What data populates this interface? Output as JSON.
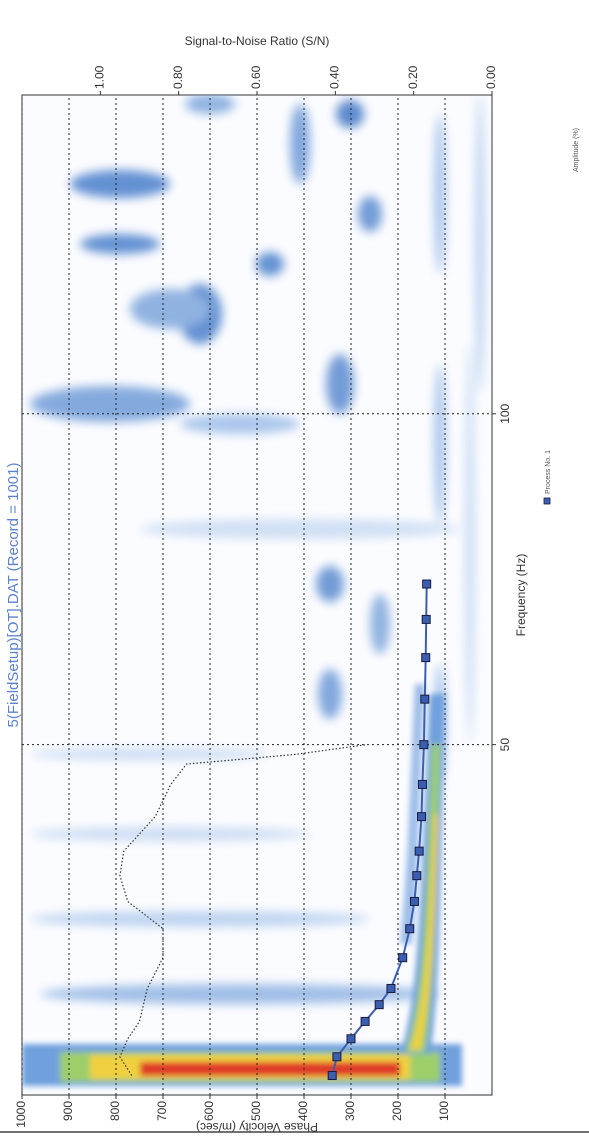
{
  "chart_data": {
    "type": "line",
    "title": "5(FieldSetup)[OT].DAT (Record = 1001)",
    "x_label": "Frequency (Hz)",
    "y_label": "Phase Velocity (m/sec)",
    "y2_label": "Signal-to-Noise Ratio (S/N)",
    "colorbar_label": "Amplitude (%)",
    "xscale": "log",
    "xlim": [
      24,
      195
    ],
    "xticks": [
      50,
      100
    ],
    "ylim": [
      0,
      1000
    ],
    "yticks": [
      100,
      200,
      300,
      400,
      500,
      600,
      700,
      800,
      900,
      1000
    ],
    "y2lim": [
      0,
      1.2
    ],
    "y2ticks": [
      {
        "value": 0,
        "label": "0.00"
      },
      {
        "value": 0.2,
        "label": "0.20"
      },
      {
        "value": 0.4,
        "label": "0.40"
      },
      {
        "value": 0.6,
        "label": "0.60"
      },
      {
        "value": 0.8,
        "label": "0.80"
      },
      {
        "value": 1,
        "label": "1.00"
      }
    ],
    "grid": true,
    "series": [
      {
        "name": "Process No. 1",
        "color": "#3b5fb0",
        "marker": "square",
        "x": [
          25,
          26,
          27,
          28,
          29,
          30,
          32,
          34,
          36,
          38,
          40,
          43,
          46,
          50,
          55,
          60,
          65,
          70
        ],
        "values": [
          340,
          330,
          300,
          270,
          240,
          215,
          190,
          175,
          165,
          160,
          155,
          150,
          148,
          145,
          143,
          141,
          140,
          139
        ]
      },
      {
        "axis": "y2",
        "color": "#333333",
        "line_style": "dotted",
        "x": [
          25,
          26,
          27,
          28,
          30,
          32,
          34,
          36,
          38,
          40,
          43,
          46,
          48,
          49,
          50
        ],
        "values": [
          0.92,
          0.95,
          0.93,
          0.9,
          0.88,
          0.84,
          0.84,
          0.93,
          0.95,
          0.94,
          0.86,
          0.82,
          0.78,
          0.5,
          0.32
        ]
      }
    ]
  }
}
